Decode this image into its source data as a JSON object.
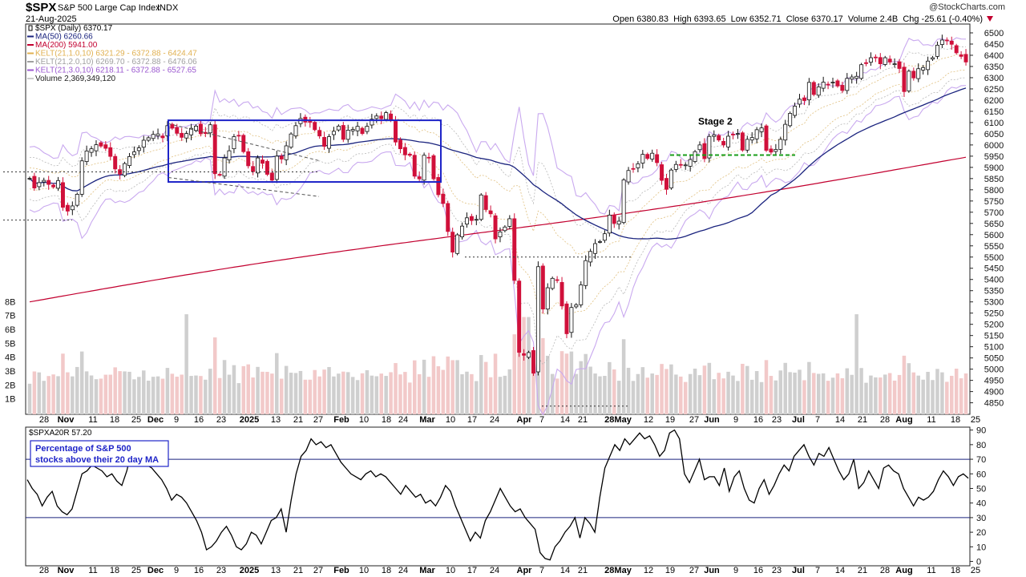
{
  "header": {
    "symbol": "$SPX",
    "name": "S&P 500 Large Cap Index",
    "exchange": "INDX",
    "date": "21-Aug-2025",
    "watermark": "@StockCharts.com",
    "ohlc_text": "Open 6380.83  High 6393.65  Low 6352.71  Close 6370.17  Volume 2.4B  Chg -25.61 (-0.40%)",
    "chg_icon": "down-triangle-icon"
  },
  "legend": [
    {
      "text": "$SPX (Daily) 6370.17",
      "color": "#000000",
      "icon": "candle-icon"
    },
    {
      "text": "MA(50) 6260.66",
      "color": "#1a237e"
    },
    {
      "text": "MA(200) 5941.00",
      "color": "#c2002f"
    },
    {
      "text": "KELT(21,1.0,10) 6321.29 - 6372.88 - 6424.47",
      "color": "#e0b050"
    },
    {
      "text": "KELT(21,2.0,10) 6269.70 - 6372.88 - 6476.06",
      "color": "#a0a0a0"
    },
    {
      "text": "KELT(21,3.0,10) 6218.11 - 6372.88 - 6527.65",
      "color": "#9b59d0"
    },
    {
      "text": "Volume 2,369,349,120",
      "color": "#cccccc"
    }
  ],
  "annotations": {
    "stage_label": "Stage 2",
    "box_note": "Percentage of S&P 500 stocks above their 20 day MA",
    "box_note_line1": "Percentage of S&P 500",
    "box_note_line2": "stocks above their 20 day MA"
  },
  "lower_panel": {
    "title": "$SPXA20R 57.20",
    "ref_lines": [
      70,
      30
    ]
  },
  "x_axis_labels": [
    "28",
    "Nov",
    "11",
    "18",
    "25",
    "Dec",
    "9",
    "16",
    "23",
    "2025",
    "13",
    "21",
    "27",
    "Feb",
    "10",
    "18",
    "24",
    "Mar",
    "10",
    "17",
    "24",
    "Apr",
    "7",
    "14",
    "21",
    "28May",
    "12",
    "19",
    "27",
    "Jun",
    "9",
    "16",
    "23",
    "Jul",
    "7",
    "14",
    "21",
    "28",
    "Aug",
    "11",
    "18",
    "25"
  ],
  "chart_data": [
    {
      "type": "candlestick",
      "title": "$SPX S&P 500 Large Cap Index",
      "y_ticks": [
        4850,
        4900,
        4950,
        5000,
        5050,
        5100,
        5150,
        5200,
        5250,
        5300,
        5350,
        5400,
        5450,
        5500,
        5550,
        5600,
        5650,
        5700,
        5750,
        5800,
        5850,
        5900,
        5950,
        6000,
        6050,
        6100,
        6150,
        6200,
        6250,
        6300,
        6350,
        6400,
        6450,
        6500
      ],
      "ylim": [
        4820,
        6525
      ],
      "volume_ticks": [
        "1B",
        "2B",
        "3B",
        "4B",
        "5B",
        "6B",
        "7B",
        "8B"
      ],
      "volume_max": 8.6,
      "x_range": [
        "2024-10-22",
        "2025-08-25"
      ],
      "closes": [
        [
          5851,
          5808,
          5832,
          5842,
          5824,
          5813,
          5841,
          5722,
          5705,
          5728,
          5780,
          5929,
          5973,
          5983,
          6001,
          5995,
          5985,
          5949,
          5893,
          5870,
          5917,
          5948,
          5969,
          5987,
          6021,
          6032,
          6047,
          6049,
          6032,
          6086,
          6075,
          6052,
          6034,
          6051,
          6074,
          6084,
          6050,
          6051,
          6090,
          5872,
          5867,
          5942,
          5974,
          6037,
          6040,
          5970,
          5907,
          5881,
          5942,
          5918,
          5869,
          5843,
          5950,
          5937,
          5996,
          6049,
          6086,
          6118,
          6102,
          6101,
          6068,
          6040,
          5994,
          6037,
          6061,
          6084,
          6025,
          6066,
          6069,
          6083,
          6051,
          6083,
          6115,
          6129,
          6117,
          6144,
          6114,
          6013,
          5983,
          5956,
          5954,
          5861,
          5849,
          5954,
          5943,
          5849,
          5778,
          5739,
          5614,
          5522,
          5599,
          5638,
          5675,
          5663,
          5668,
          5777,
          5712,
          5693,
          5581,
          5612,
          5634,
          5671,
          5396,
          5075,
          5062,
          5074,
          4982,
          5457,
          5268,
          5363,
          5405,
          5396,
          5282,
          5158,
          5275,
          5287,
          5376,
          5484,
          5525,
          5560,
          5569,
          5604,
          5687,
          5650,
          5660,
          5844,
          5886,
          5892,
          5916,
          5958,
          5940,
          5963,
          5921,
          5842,
          5802,
          5888,
          5913,
          5912,
          5911,
          5935,
          5970,
          6000,
          5939,
          6038,
          6045,
          6022,
          6000,
          6039,
          6045,
          6051,
          5977,
          6025,
          6033,
          6068,
          6076,
          5976,
          5968,
          5980,
          6025,
          6092,
          6141,
          6173,
          6204,
          6198,
          6279,
          6225,
          6259,
          6280,
          6269,
          6280,
          6263,
          6243,
          6297,
          6303,
          6306,
          6358,
          6363,
          6389,
          6390,
          6362,
          6389,
          6370,
          6362,
          6341,
          6238,
          6329,
          6299,
          6340,
          6345,
          6374,
          6389,
          6445,
          6468,
          6466,
          6449,
          6411,
          6395,
          6370
        ]
      ]
    },
    {
      "type": "line",
      "title": "$SPXA20R",
      "series": [
        {
          "name": "$SPXA20R",
          "values": [
            56,
            50,
            46,
            38,
            44,
            48,
            38,
            34,
            32,
            36,
            48,
            60,
            62,
            66,
            64,
            62,
            58,
            60,
            55,
            52,
            62,
            76,
            78,
            70,
            66,
            64,
            60,
            56,
            50,
            42,
            46,
            44,
            40,
            34,
            28,
            20,
            8,
            10,
            14,
            20,
            24,
            18,
            10,
            8,
            12,
            20,
            18,
            12,
            20,
            28,
            30,
            36,
            20,
            42,
            60,
            72,
            76,
            84,
            80,
            82,
            78,
            80,
            74,
            68,
            64,
            60,
            58,
            56,
            60,
            62,
            58,
            60,
            58,
            54,
            50,
            46,
            52,
            48,
            44,
            46,
            40,
            42,
            38,
            44,
            52,
            48,
            38,
            30,
            22,
            14,
            20,
            16,
            28,
            34,
            42,
            50,
            44,
            38,
            34,
            36,
            30,
            26,
            22,
            6,
            2,
            1,
            10,
            14,
            20,
            24,
            30,
            16,
            30,
            26,
            20,
            44,
            64,
            72,
            80,
            76,
            84,
            80,
            84,
            88,
            84,
            86,
            80,
            72,
            76,
            88,
            90,
            84,
            60,
            54,
            62,
            70,
            56,
            58,
            58,
            52,
            64,
            48,
            58,
            62,
            50,
            42,
            40,
            50,
            56,
            46,
            52,
            60,
            66,
            62,
            72,
            76,
            80,
            72,
            66,
            74,
            72,
            78,
            70,
            62,
            56,
            60,
            70,
            50,
            54,
            62,
            56,
            50,
            64,
            66,
            62,
            60,
            50,
            44,
            38,
            44,
            42,
            44,
            48,
            56,
            62,
            58,
            52,
            58,
            60,
            57
          ]
        }
      ],
      "y_ticks": [
        0,
        10,
        20,
        30,
        40,
        50,
        60,
        70,
        80,
        90
      ],
      "ylim": [
        -3,
        92
      ]
    }
  ],
  "colors": {
    "up": "#ffffff",
    "down": "#d0103a",
    "vol_up": "#cfcfcf",
    "vol_down": "#f2c9c9",
    "box": "#1e24c8",
    "stage": "#1a9e1a"
  }
}
